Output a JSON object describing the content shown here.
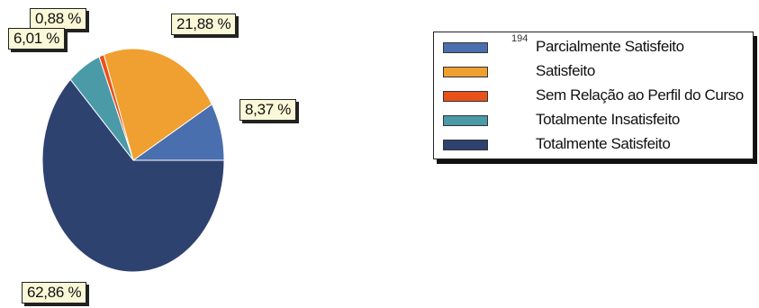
{
  "chart_data": {
    "type": "pie",
    "slices": [
      {
        "name": "Parcialmente Satisfeito",
        "value": 8.37,
        "label": "8,37 %",
        "color": "#4a6fae"
      },
      {
        "name": "Satisfeito",
        "value": 21.88,
        "label": "21,88 %",
        "color": "#f0a030"
      },
      {
        "name": "Sem Relação ao Perfil do Curso",
        "value": 0.88,
        "label": "0,88 %",
        "color": "#e8521a"
      },
      {
        "name": "Totalmente Insatisfeito",
        "value": 6.01,
        "label": "6,01 %",
        "color": "#4a9aa8"
      },
      {
        "name": "Totalmente Satisfeito",
        "value": 62.86,
        "label": "62,86 %",
        "color": "#2e4270"
      }
    ],
    "legend_position": "right",
    "legend_stray_text": "194"
  }
}
